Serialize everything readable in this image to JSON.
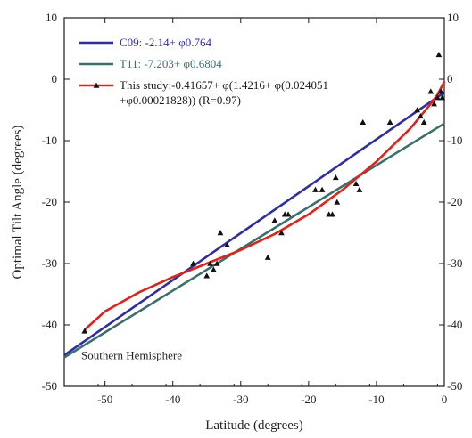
{
  "chart_data": {
    "type": "scatter",
    "xlabel": "Latitude (degrees)",
    "ylabel": "Optimal Tilt Angle (degrees)",
    "xlim": [
      -56,
      0
    ],
    "ylim": [
      -50,
      10
    ],
    "x_ticks": [
      -50,
      -40,
      -30,
      -20,
      -10,
      0
    ],
    "y_ticks": [
      10,
      0,
      -10,
      -20,
      -30,
      -40,
      -50
    ],
    "right_y_ticks": [
      10,
      0,
      -10,
      -20,
      -30,
      -40,
      -50
    ],
    "grid": false,
    "annotation": "Southern Hemisphere",
    "legend_position": "top-left",
    "series": [
      {
        "name": "C09: -2.14+ φ0.764",
        "kind": "line",
        "color": "#2e2e9e",
        "x": [
          -56,
          0
        ],
        "y": [
          -44.92,
          -2.14
        ]
      },
      {
        "name": "T11: -7.203+ φ0.6804",
        "kind": "line",
        "color": "#3c6e6a",
        "x": [
          -56,
          0
        ],
        "y": [
          -45.3,
          -7.2
        ]
      },
      {
        "name": "This study:-0.41657+ φ(1.4216+ φ(0.024051 +φ0.00021828)) (R=0.97)",
        "legend_lines": [
          "This study:-0.41657+ φ(1.4216+ φ(0.024051",
          "+φ0.00021828)) (R=0.97)"
        ],
        "kind": "line+marker",
        "marker": "triangle",
        "color": "#e0231a",
        "x": [
          -53,
          -50,
          -45,
          -40,
          -35,
          -30,
          -25,
          -20,
          -15,
          -10,
          -5,
          -2,
          -1,
          0
        ],
        "y": [
          -40.8,
          -37.8,
          -34.7,
          -32.2,
          -30.0,
          -27.8,
          -25.2,
          -22.0,
          -18.0,
          -13.4,
          -8.0,
          -4.0,
          -2.5,
          -0.4
        ]
      },
      {
        "name": "observed",
        "kind": "points",
        "marker": "triangle",
        "color": "#111111",
        "x": [
          -53,
          -37,
          -35,
          -34.5,
          -34,
          -33.5,
          -33,
          -32,
          -26,
          -25,
          -24,
          -23.5,
          -23,
          -19,
          -18,
          -17,
          -16.5,
          -16,
          -15.8,
          -13,
          -12.5,
          -12,
          -8,
          -4,
          -3.5,
          -3,
          -2,
          -1.5,
          -1,
          -0.8,
          -0.5,
          -0.3
        ],
        "y": [
          -41,
          -30,
          -32,
          -30,
          -31,
          -30,
          -25,
          -27,
          -29,
          -23,
          -25,
          -22,
          -22,
          -18,
          -18,
          -22,
          -22,
          -16,
          -20,
          -17,
          -18,
          -7,
          -7,
          -5,
          -6,
          -7,
          -2,
          -4,
          -3,
          4,
          -2,
          -3
        ]
      }
    ]
  }
}
